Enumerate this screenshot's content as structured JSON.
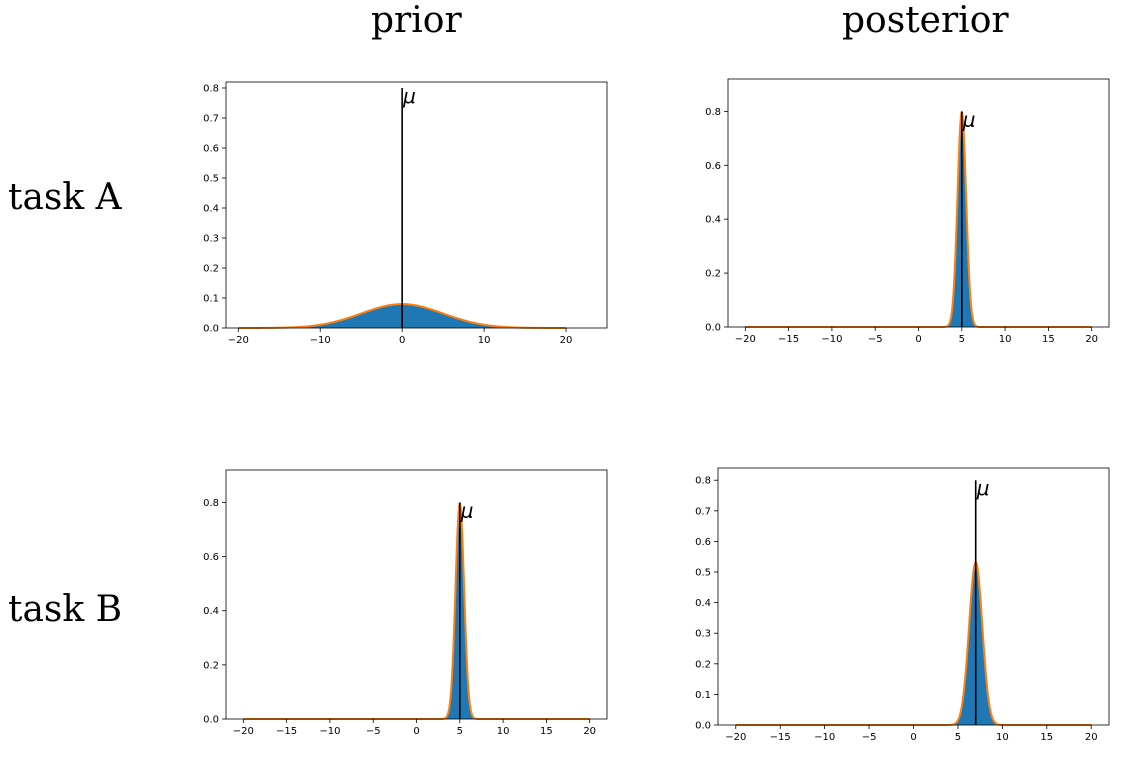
{
  "header": {
    "col_left": "prior",
    "col_right": "posterior",
    "row_top": "task A",
    "row_bottom": "task B"
  },
  "colors": {
    "histogram": "#1f77b4",
    "density_curve": "#ff7f0e",
    "mean_line": "#000000"
  },
  "chart_data": [
    {
      "type": "area",
      "panel": "task A prior",
      "distribution": {
        "mean": 0,
        "std": 5
      },
      "xlim": [
        -21.5,
        25
      ],
      "ylim": [
        0,
        0.82
      ],
      "xticks": [
        -20,
        -10,
        0,
        10,
        20
      ],
      "xtick_labels": [
        "−20",
        "−10",
        "0",
        "10",
        "20"
      ],
      "yticks": [
        0,
        0.1,
        0.2,
        0.3,
        0.4,
        0.5,
        0.6,
        0.7,
        0.8
      ],
      "ytick_labels": [
        "0.0",
        "0.1",
        "0.2",
        "0.3",
        "0.4",
        "0.5",
        "0.6",
        "0.7",
        "0.8"
      ],
      "curve_range": [
        -20,
        20
      ],
      "annotation": {
        "text": "μ",
        "x": 0,
        "y_top": 0.8
      }
    },
    {
      "type": "area",
      "panel": "task A posterior",
      "distribution": {
        "mean": 5,
        "std": 0.5
      },
      "xlim": [
        -22,
        22
      ],
      "ylim": [
        0,
        0.92
      ],
      "xticks": [
        -20,
        -15,
        -10,
        -5,
        0,
        5,
        10,
        15,
        20
      ],
      "xtick_labels": [
        "−20",
        "−15",
        "−10",
        "−5",
        "0",
        "5",
        "10",
        "15",
        "20"
      ],
      "yticks": [
        0,
        0.2,
        0.4,
        0.6,
        0.8
      ],
      "ytick_labels": [
        "0.0",
        "0.2",
        "0.4",
        "0.6",
        "0.8"
      ],
      "curve_range": [
        -20,
        20
      ],
      "annotation": {
        "text": "μ",
        "x": 5,
        "y_top": 0.8
      }
    },
    {
      "type": "area",
      "panel": "task B prior",
      "distribution": {
        "mean": 5,
        "std": 0.5
      },
      "xlim": [
        -22,
        22
      ],
      "ylim": [
        0,
        0.92
      ],
      "xticks": [
        -20,
        -15,
        -10,
        -5,
        0,
        5,
        10,
        15,
        20
      ],
      "xtick_labels": [
        "−20",
        "−15",
        "−10",
        "−5",
        "0",
        "5",
        "10",
        "15",
        "20"
      ],
      "yticks": [
        0,
        0.2,
        0.4,
        0.6,
        0.8
      ],
      "ytick_labels": [
        "0.0",
        "0.2",
        "0.4",
        "0.6",
        "0.8"
      ],
      "curve_range": [
        -20,
        20
      ],
      "annotation": {
        "text": "μ",
        "x": 5,
        "y_top": 0.8
      }
    },
    {
      "type": "area",
      "panel": "task B posterior",
      "distribution": {
        "mean": 7,
        "std": 0.75
      },
      "xlim": [
        -22,
        22
      ],
      "ylim": [
        0,
        0.84
      ],
      "xticks": [
        -20,
        -15,
        -10,
        -5,
        0,
        5,
        10,
        15,
        20
      ],
      "xtick_labels": [
        "−20",
        "−15",
        "−10",
        "−5",
        "0",
        "5",
        "10",
        "15",
        "20"
      ],
      "yticks": [
        0,
        0.1,
        0.2,
        0.3,
        0.4,
        0.5,
        0.6,
        0.7,
        0.8
      ],
      "ytick_labels": [
        "0.0",
        "0.1",
        "0.2",
        "0.3",
        "0.4",
        "0.5",
        "0.6",
        "0.7",
        "0.8"
      ],
      "curve_range": [
        -20,
        20
      ],
      "annotation": {
        "text": "μ",
        "x": 7,
        "y_top": 0.8
      }
    }
  ]
}
